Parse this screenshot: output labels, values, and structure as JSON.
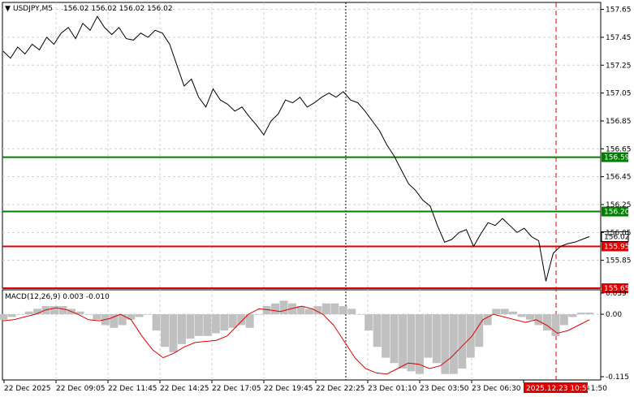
{
  "header": {
    "symbol": "USDJPY,M5",
    "ohlc": "156.02 156.02 156.02 156.02"
  },
  "macd_header": "MACD(12,26,9) 0.003 -0.010",
  "price_ticks": [
    "157.65",
    "157.45",
    "157.25",
    "157.05",
    "156.85",
    "156.65",
    "156.45",
    "156.25",
    "156.05",
    "155.85"
  ],
  "macd_ticks": [
    "0.039",
    "0.00",
    "-0.115"
  ],
  "time_ticks": [
    "22 Dec 2025",
    "22 Dec 09:05",
    "22 Dec 11:45",
    "22 Dec 14:25",
    "22 Dec 17:05",
    "22 Dec 19:45",
    "22 Dec 22:25",
    "23 Dec 01:10",
    "23 Dec 03:50",
    "23 Dec 06:30",
    "ec 11:50"
  ],
  "time_highlight": "2025.12.23 10:55",
  "levels": [
    {
      "label": "156.59",
      "color": "#008000"
    },
    {
      "label": "156.20",
      "color": "#008000"
    },
    {
      "label": "155.95",
      "color": "#e00000"
    },
    {
      "label": "155.65",
      "color": "#e00000"
    }
  ],
  "current_price": "156.02",
  "colors": {
    "bullish_level": "#008000",
    "bearish_level": "#e00000",
    "price": "#000000",
    "macd_hist": "#c0c0c0",
    "macd_signal": "#e00000"
  },
  "chart_data": {
    "type": "line",
    "price_series": [
      157.35,
      157.3,
      157.38,
      157.33,
      157.4,
      157.36,
      157.45,
      157.4,
      157.48,
      157.52,
      157.44,
      157.55,
      157.5,
      157.6,
      157.52,
      157.47,
      157.52,
      157.44,
      157.43,
      157.48,
      157.45,
      157.5,
      157.48,
      157.4,
      157.25,
      157.1,
      157.15,
      157.02,
      156.95,
      157.08,
      157.0,
      156.97,
      156.92,
      156.95,
      156.88,
      156.82,
      156.75,
      156.85,
      156.9,
      157.0,
      156.98,
      157.02,
      156.95,
      156.98,
      157.02,
      157.05,
      157.02,
      157.06,
      157.0,
      156.98,
      156.92,
      156.85,
      156.78,
      156.68,
      156.6,
      156.5,
      156.4,
      156.35,
      156.28,
      156.24,
      156.1,
      155.98,
      156.0,
      156.05,
      156.07,
      155.95,
      156.04,
      156.12,
      156.1,
      156.15,
      156.1,
      156.05,
      156.08,
      156.02,
      155.99,
      155.7,
      155.9,
      155.95,
      155.97,
      155.98,
      156.0,
      156.02
    ],
    "macd_hist": [
      -0.01,
      -0.005,
      0.0,
      0.005,
      0.01,
      0.015,
      0.015,
      0.015,
      0.01,
      0.005,
      0.0,
      -0.01,
      -0.02,
      -0.025,
      -0.02,
      -0.01,
      -0.005,
      0.0,
      -0.03,
      -0.06,
      -0.07,
      -0.055,
      -0.045,
      -0.04,
      -0.04,
      -0.035,
      -0.03,
      -0.025,
      -0.02,
      -0.025,
      0.0,
      0.015,
      0.02,
      0.025,
      0.02,
      0.015,
      0.01,
      0.015,
      0.02,
      0.02,
      0.015,
      0.01,
      0.0,
      -0.03,
      -0.06,
      -0.08,
      -0.09,
      -0.1,
      -0.105,
      -0.11,
      -0.08,
      -0.09,
      -0.11,
      -0.11,
      -0.1,
      -0.08,
      -0.06,
      -0.02,
      0.01,
      0.01,
      0.005,
      -0.005,
      -0.01,
      -0.02,
      -0.03,
      -0.04,
      -0.02,
      -0.005,
      0.003,
      0.003
    ],
    "macd_signal": [
      -0.012,
      -0.01,
      -0.005,
      0.0,
      0.008,
      0.012,
      0.008,
      0.0,
      -0.01,
      -0.012,
      -0.008,
      0.0,
      -0.01,
      -0.04,
      -0.065,
      -0.08,
      -0.072,
      -0.06,
      -0.052,
      -0.05,
      -0.048,
      -0.04,
      -0.02,
      0.0,
      0.01,
      0.008,
      0.005,
      0.01,
      0.015,
      0.01,
      0.0,
      -0.02,
      -0.05,
      -0.08,
      -0.1,
      -0.108,
      -0.11,
      -0.1,
      -0.09,
      -0.092,
      -0.1,
      -0.095,
      -0.08,
      -0.06,
      -0.04,
      -0.01,
      0.0,
      -0.005,
      -0.01,
      -0.015,
      -0.01,
      -0.02,
      -0.035,
      -0.03,
      -0.02,
      -0.01
    ],
    "ylim_price": [
      155.65,
      157.7
    ],
    "ylim_macd": [
      -0.115,
      0.039
    ]
  }
}
